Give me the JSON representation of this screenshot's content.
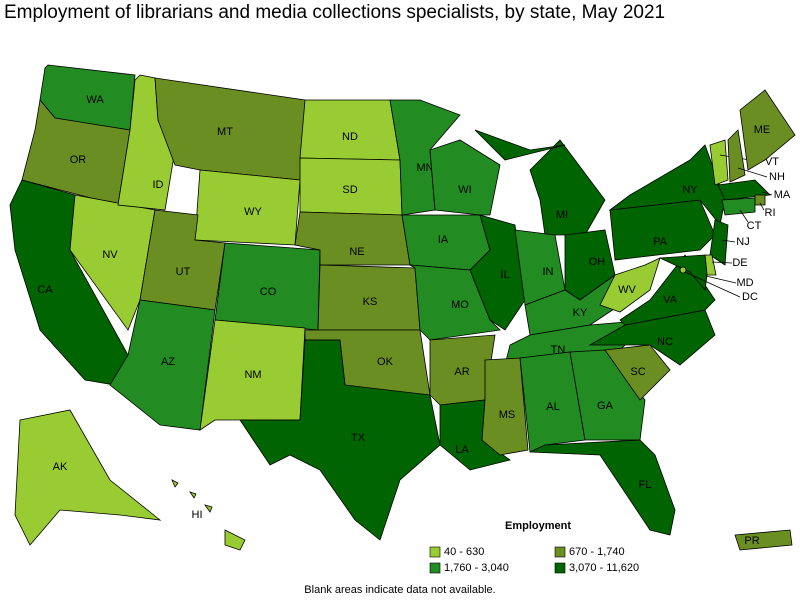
{
  "title": "Employment of librarians and media collections specialists, by state, May 2021",
  "legend": {
    "title": "Employment",
    "items": [
      {
        "label": "40 - 630",
        "color": "#99cc33"
      },
      {
        "label": "670 - 1,740",
        "color": "#6b8e23"
      },
      {
        "label": "1,760 - 3,040",
        "color": "#228b22"
      },
      {
        "label": "3,070 - 11,620",
        "color": "#006400"
      }
    ]
  },
  "footnote": "Blank areas indicate data not available.",
  "states": [
    {
      "label": "WA",
      "color": "#228b22"
    },
    {
      "label": "OR",
      "color": "#6b8e23"
    },
    {
      "label": "CA",
      "color": "#006400"
    },
    {
      "label": "NV",
      "color": "#99cc33"
    },
    {
      "label": "ID",
      "color": "#99cc33"
    },
    {
      "label": "MT",
      "color": "#6b8e23"
    },
    {
      "label": "WY",
      "color": "#99cc33"
    },
    {
      "label": "UT",
      "color": "#6b8e23"
    },
    {
      "label": "CO",
      "color": "#228b22"
    },
    {
      "label": "AZ",
      "color": "#228b22"
    },
    {
      "label": "NM",
      "color": "#99cc33"
    },
    {
      "label": "ND",
      "color": "#99cc33"
    },
    {
      "label": "SD",
      "color": "#99cc33"
    },
    {
      "label": "NE",
      "color": "#6b8e23"
    },
    {
      "label": "KS",
      "color": "#6b8e23"
    },
    {
      "label": "OK",
      "color": "#6b8e23"
    },
    {
      "label": "TX",
      "color": "#006400"
    },
    {
      "label": "MN",
      "color": "#228b22"
    },
    {
      "label": "IA",
      "color": "#228b22"
    },
    {
      "label": "MO",
      "color": "#228b22"
    },
    {
      "label": "AR",
      "color": "#6b8e23"
    },
    {
      "label": "LA",
      "color": "#006400"
    },
    {
      "label": "WI",
      "color": "#228b22"
    },
    {
      "label": "IL",
      "color": "#006400"
    },
    {
      "label": "MI",
      "color": "#006400"
    },
    {
      "label": "IN",
      "color": "#228b22"
    },
    {
      "label": "OH",
      "color": "#006400"
    },
    {
      "label": "KY",
      "color": "#228b22"
    },
    {
      "label": "TN",
      "color": "#228b22"
    },
    {
      "label": "MS",
      "color": "#6b8e23"
    },
    {
      "label": "AL",
      "color": "#228b22"
    },
    {
      "label": "GA",
      "color": "#228b22"
    },
    {
      "label": "FL",
      "color": "#006400"
    },
    {
      "label": "SC",
      "color": "#6b8e23"
    },
    {
      "label": "NC",
      "color": "#006400"
    },
    {
      "label": "VA",
      "color": "#006400"
    },
    {
      "label": "WV",
      "color": "#99cc33"
    },
    {
      "label": "PA",
      "color": "#006400"
    },
    {
      "label": "NY",
      "color": "#006400"
    },
    {
      "label": "VT",
      "color": "#99cc33"
    },
    {
      "label": "NH",
      "color": "#6b8e23"
    },
    {
      "label": "ME",
      "color": "#6b8e23"
    },
    {
      "label": "MA",
      "color": "#006400"
    },
    {
      "label": "RI",
      "color": "#6b8e23"
    },
    {
      "label": "CT",
      "color": "#228b22"
    },
    {
      "label": "NJ",
      "color": "#006400"
    },
    {
      "label": "DE",
      "color": "#99cc33"
    },
    {
      "label": "MD",
      "color": "#006400"
    },
    {
      "label": "DC",
      "color": "#99cc33"
    },
    {
      "label": "AK",
      "color": "#99cc33"
    },
    {
      "label": "HI",
      "color": "#99cc33"
    },
    {
      "label": "PR",
      "color": "#6b8e23"
    }
  ]
}
